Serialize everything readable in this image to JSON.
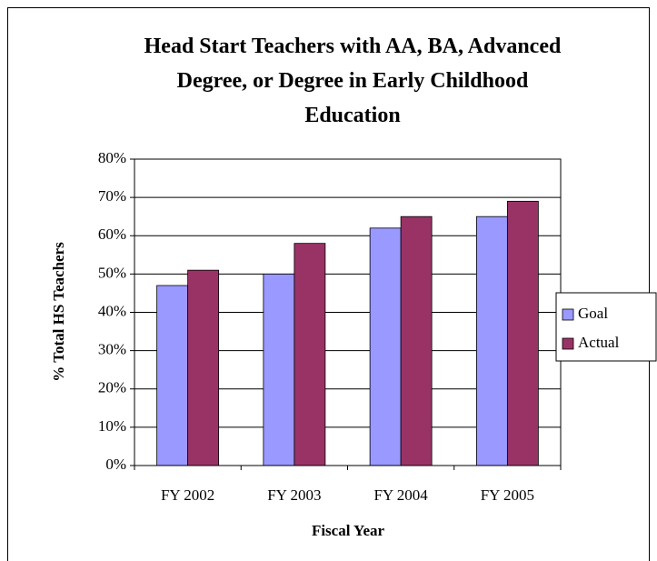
{
  "chart_data": {
    "type": "bar",
    "title": "Head Start Teachers with AA, BA, Advanced Degree, or Degree in Early Childhood Education",
    "x_label": "Fiscal Year",
    "y_label": "% Total HS Teachers",
    "categories": [
      "FY 2002",
      "FY 2003",
      "FY 2004",
      "FY 2005"
    ],
    "series": [
      {
        "name": "Goal",
        "color": "#9999ff",
        "values": [
          47,
          50,
          62,
          65
        ]
      },
      {
        "name": "Actual",
        "color": "#993366",
        "values": [
          51,
          58,
          65,
          69
        ]
      }
    ],
    "ylim": [
      0,
      80
    ],
    "yticks": [
      {
        "value": 0,
        "label": "0%"
      },
      {
        "value": 10,
        "label": "10%"
      },
      {
        "value": 20,
        "label": "20%"
      },
      {
        "value": 30,
        "label": "30%"
      },
      {
        "value": 40,
        "label": "40%"
      },
      {
        "value": 50,
        "label": "50%"
      },
      {
        "value": 60,
        "label": "60%"
      },
      {
        "value": 70,
        "label": "70%"
      },
      {
        "value": 80,
        "label": "80%"
      }
    ],
    "grid": true,
    "legend": "right"
  }
}
